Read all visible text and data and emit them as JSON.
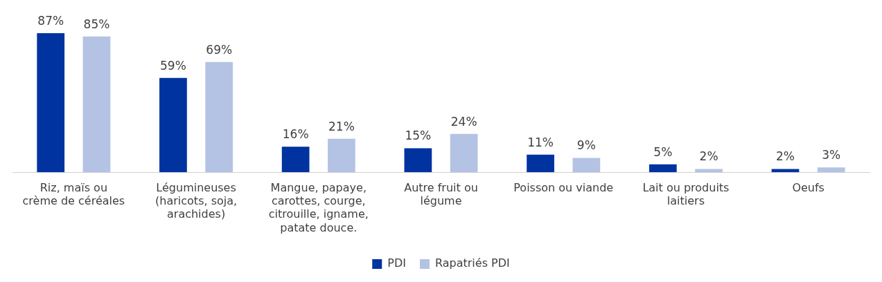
{
  "chart_data": {
    "type": "bar",
    "categories": [
      "Riz, maïs ou crème de céréales",
      "Légumineuses (haricots, soja, arachides)",
      "Mangue, papaye, carottes, courge, citrouille, igname, patate douce.",
      "Autre fruit ou légume",
      "Poisson ou viande",
      "Lait ou produits laitiers",
      "Oeufs"
    ],
    "series": [
      {
        "name": "PDI",
        "color": "#0033a0",
        "values": [
          87,
          59,
          16,
          15,
          11,
          5,
          2
        ],
        "value_labels": [
          "87%",
          "59%",
          "16%",
          "15%",
          "11%",
          "5%",
          "2%"
        ]
      },
      {
        "name": "Rapatriés PDI",
        "color": "#b4c3e4",
        "values": [
          85,
          69,
          21,
          24,
          9,
          2,
          3
        ],
        "value_labels": [
          "85%",
          "69%",
          "21%",
          "24%",
          "9%",
          "2%",
          "3%"
        ]
      }
    ],
    "legend": "bottom"
  }
}
